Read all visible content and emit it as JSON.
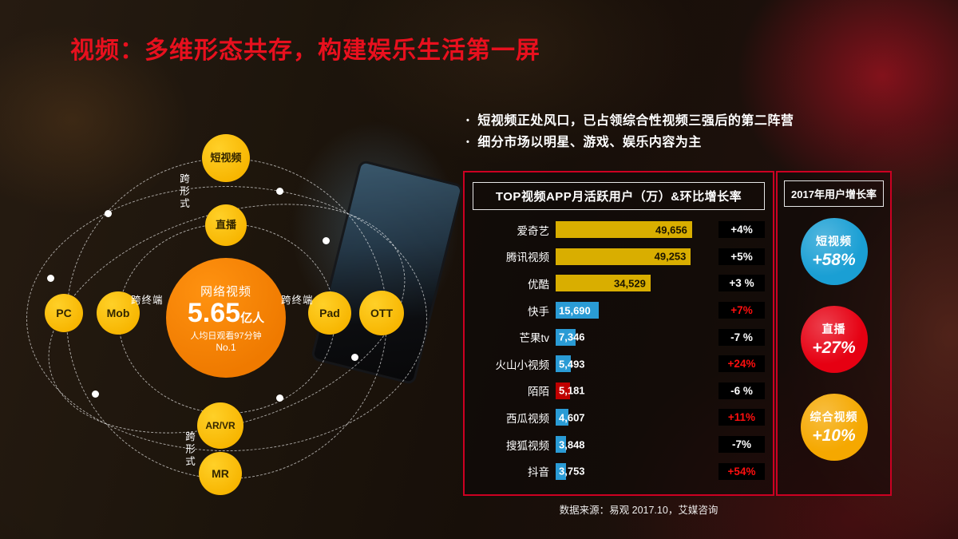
{
  "slide_title": "视频：多维形态共存，构建娱乐生活第一屏",
  "bullets": [
    "短视频正处风口，已占领综合性视频三强后的第二阵营",
    "细分市场以明星、游戏、娱乐内容为主"
  ],
  "diagram": {
    "center": {
      "title": "网络视频",
      "big_number": "5.65",
      "big_unit": "亿人",
      "sub1": "人均日观看97分钟",
      "sub2": "No.1"
    },
    "nodes": [
      {
        "id": "short-video",
        "label": "短视频"
      },
      {
        "id": "live",
        "label": "直播"
      },
      {
        "id": "pc",
        "label": "PC"
      },
      {
        "id": "mob",
        "label": "Mob"
      },
      {
        "id": "pad",
        "label": "Pad"
      },
      {
        "id": "ott",
        "label": "OTT"
      },
      {
        "id": "ar-vr",
        "label": "AR/VR"
      },
      {
        "id": "mr",
        "label": "MR"
      }
    ],
    "labels": {
      "cross_format_top": "跨形式",
      "cross_device_left": "跨终端",
      "cross_device_right": "跨终端",
      "cross_format_bottom": "跨形式"
    }
  },
  "chart_data": {
    "type": "bar",
    "title": "TOP视频APP月活跃用户（万）&环比增长率",
    "categories": [
      "爱奇艺",
      "腾讯视频",
      "优酷",
      "快手",
      "芒果tv",
      "火山小视频",
      "陌陌",
      "西瓜视频",
      "搜狐视频",
      "抖音"
    ],
    "values": [
      49656,
      49253,
      34529,
      15690,
      7346,
      5493,
      5181,
      4607,
      3848,
      3753
    ],
    "value_labels": [
      "49,656",
      "49,253",
      "34,529",
      "15,690",
      "7,346",
      "5,493",
      "5,181",
      "4,607",
      "3,848",
      "3,753"
    ],
    "growth": [
      "+4%",
      "+5%",
      "+3 %",
      "+7%",
      "-7 %",
      "+24%",
      "-6 %",
      "+11%",
      "-7%",
      "+54%"
    ],
    "growth_highlight": [
      false,
      false,
      false,
      true,
      false,
      true,
      false,
      true,
      false,
      true
    ],
    "bar_colors": [
      "#d9ae00",
      "#d9ae00",
      "#d9ae00",
      "#2a9bd5",
      "#2a9bd5",
      "#2a9bd5",
      "#c00000",
      "#2a9bd5",
      "#2a9bd5",
      "#2a9bd5"
    ],
    "xlabel": "",
    "ylabel": "",
    "xlim": [
      0,
      50000
    ]
  },
  "growth_panel": {
    "title": "2017年用户增长率",
    "items": [
      {
        "id": "short-video",
        "label": "短视频",
        "value": "+58%",
        "color": "#1a9fd4"
      },
      {
        "id": "live",
        "label": "直播",
        "value": "+27%",
        "color": "#e60012"
      },
      {
        "id": "composite-video",
        "label": "综合视频",
        "value": "+10%",
        "color": "#f5a800"
      }
    ]
  },
  "source": "数据来源：易观 2017.10，艾媒咨询"
}
